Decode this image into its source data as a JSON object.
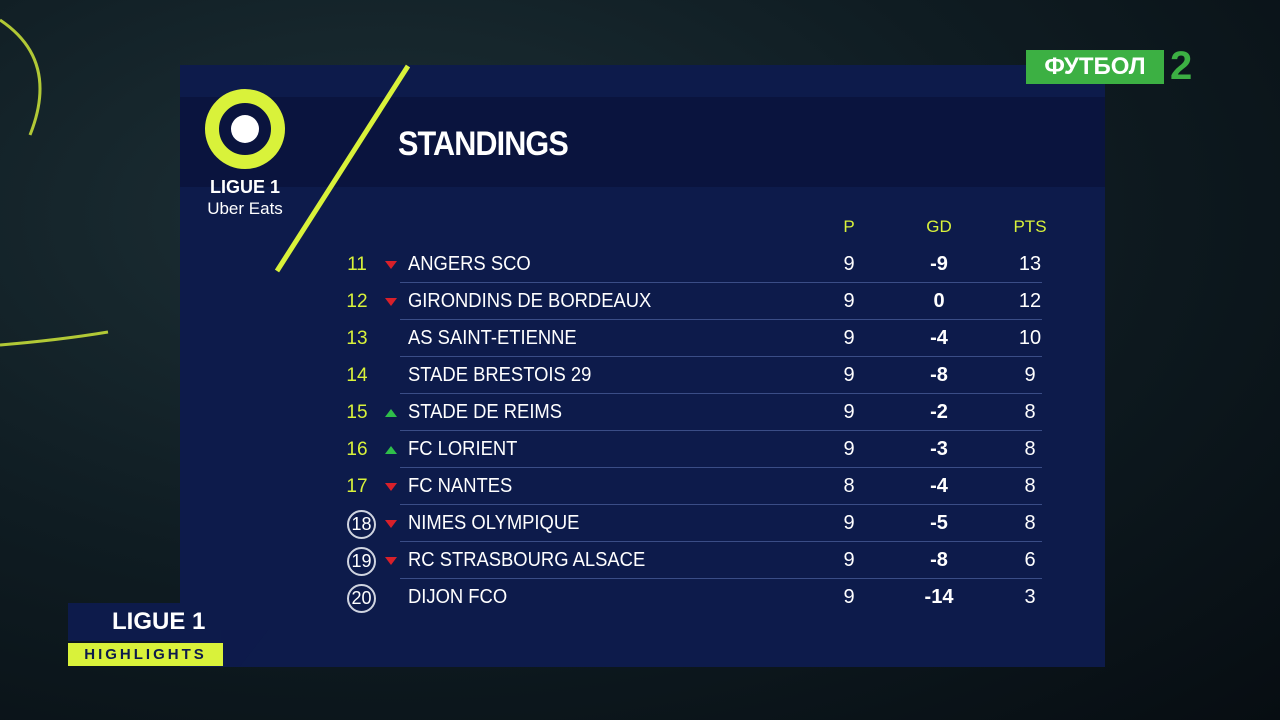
{
  "channel": {
    "name": "ФУТБОЛ",
    "number": "2"
  },
  "logo": {
    "league": "LIGUE 1",
    "sponsor": "Uber Eats"
  },
  "title": "STANDINGS",
  "table": {
    "columns": [
      "P",
      "GD",
      "PTS"
    ],
    "rows": [
      {
        "position": 11,
        "trend": "down",
        "circled": false,
        "team": "ANGERS SCO",
        "p": 9,
        "gd": -9,
        "pts": 13
      },
      {
        "position": 12,
        "trend": "down",
        "circled": false,
        "team": "GIRONDINS DE BORDEAUX",
        "p": 9,
        "gd": 0,
        "pts": 12
      },
      {
        "position": 13,
        "trend": null,
        "circled": false,
        "team": "AS SAINT-ETIENNE",
        "p": 9,
        "gd": -4,
        "pts": 10
      },
      {
        "position": 14,
        "trend": null,
        "circled": false,
        "team": "STADE BRESTOIS 29",
        "p": 9,
        "gd": -8,
        "pts": 9
      },
      {
        "position": 15,
        "trend": "up",
        "circled": false,
        "team": "STADE DE REIMS",
        "p": 9,
        "gd": -2,
        "pts": 8
      },
      {
        "position": 16,
        "trend": "up",
        "circled": false,
        "team": "FC LORIENT",
        "p": 9,
        "gd": -3,
        "pts": 8
      },
      {
        "position": 17,
        "trend": "down",
        "circled": false,
        "team": "FC NANTES",
        "p": 8,
        "gd": -4,
        "pts": 8
      },
      {
        "position": 18,
        "trend": "down",
        "circled": true,
        "team": "NIMES OLYMPIQUE",
        "p": 9,
        "gd": -5,
        "pts": 8
      },
      {
        "position": 19,
        "trend": "down",
        "circled": true,
        "team": "RC STRASBOURG ALSACE",
        "p": 9,
        "gd": -8,
        "pts": 6
      },
      {
        "position": 20,
        "trend": null,
        "circled": true,
        "team": "DIJON FCO",
        "p": 9,
        "gd": -14,
        "pts": 3
      }
    ]
  },
  "badge": {
    "league": "LIGUE 1",
    "label": "HIGHLIGHTS"
  }
}
